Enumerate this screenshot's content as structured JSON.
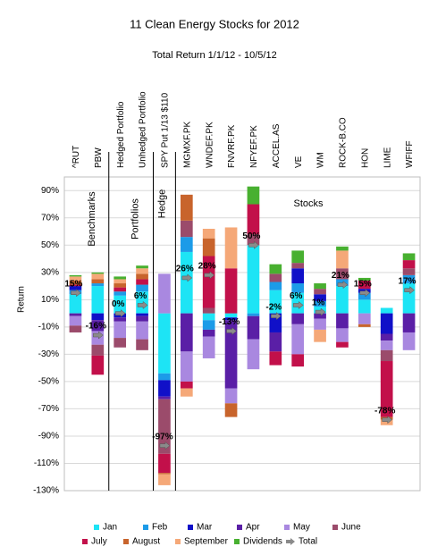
{
  "chart_data": {
    "type": "stacked-bar",
    "title": "11 Clean Energy Stocks for 2012",
    "subtitle": "Total Return 1/1/12 - 10/5/12",
    "y_label": "Return",
    "annotations": [
      "Benchmarks",
      "Portfolios",
      "Hedge",
      "Stocks"
    ],
    "categories": [
      "^RUT",
      "PBW",
      "Hedged Portfolio",
      "Unhedged Portfolio",
      "SPY Put 1/13 $110",
      "MGMXF.PK",
      "WNDEF.PK",
      "FNVRF.PK",
      "NFYEF.PK",
      "ACCEL.AS",
      "VE",
      "WM",
      "ROCK-B.CO",
      "HON",
      "LIME",
      "WFIFF"
    ],
    "series": [
      {
        "name": "Jan",
        "color": "#1de4f5",
        "values": [
          14,
          20,
          13,
          16,
          -44,
          45,
          -5,
          -3,
          50,
          17,
          15,
          5,
          20,
          10,
          4,
          22
        ]
      },
      {
        "name": "Feb",
        "color": "#1c9be8",
        "values": [
          3,
          2,
          3,
          5,
          -5,
          11,
          -7,
          0,
          -2,
          6,
          7,
          4,
          5,
          5,
          0,
          6
        ]
      },
      {
        "name": "Mar",
        "color": "#1010c8",
        "values": [
          3,
          -5,
          -3,
          -2,
          -12,
          0,
          0,
          -2,
          0,
          -14,
          11,
          5,
          0,
          3,
          -15,
          0
        ]
      },
      {
        "name": "Apr",
        "color": "#5a1fa6",
        "values": [
          -2,
          -8,
          -3,
          -4,
          -2,
          -28,
          -5,
          -50,
          -17,
          -14,
          -8,
          -4,
          -11,
          0,
          -5,
          -14
        ]
      },
      {
        "name": "May",
        "color": "#a988e0",
        "values": [
          -7,
          -10,
          -12,
          -13,
          29,
          -22,
          -16,
          -11,
          -22,
          0,
          -22,
          -8,
          -10,
          -8,
          -7,
          -13
        ]
      },
      {
        "name": "June",
        "color": "#9b4b6b",
        "values": [
          -5,
          -8,
          -7,
          -8,
          -40,
          12,
          4,
          0,
          8,
          6,
          4,
          4,
          8,
          0,
          -8,
          5
        ]
      },
      {
        "name": "July",
        "color": "#c2104a",
        "values": [
          1,
          -14,
          3,
          4,
          -14,
          -5,
          38,
          33,
          22,
          -10,
          -9,
          0,
          -4,
          6,
          -41,
          6
        ]
      },
      {
        "name": "August",
        "color": "#c8642c",
        "values": [
          3,
          3,
          3,
          4,
          -1,
          19,
          13,
          -10,
          0,
          0,
          0,
          0,
          0,
          -2,
          -2,
          0
        ]
      },
      {
        "name": "September",
        "color": "#f5a878",
        "values": [
          3,
          4,
          3,
          4,
          -8,
          -6,
          7,
          30,
          0,
          0,
          0,
          -9,
          13,
          0,
          -4,
          0
        ]
      },
      {
        "name": "Dividends",
        "color": "#48b030",
        "values": [
          1,
          1,
          2,
          2,
          0,
          0,
          0,
          0,
          13,
          7,
          9,
          4,
          3,
          2,
          0,
          5
        ]
      }
    ],
    "total": {
      "name": "Total",
      "color": "#8a8a8a",
      "values": [
        15,
        -16,
        0,
        6,
        -97,
        26,
        28,
        -13,
        50,
        -2,
        6,
        1,
        21,
        15,
        -78,
        17
      ],
      "value_labels": [
        "15%",
        "-16%",
        "0%",
        "6%",
        "-97%",
        "26%",
        "28%",
        "-13%",
        "50%",
        "-2%",
        "6%",
        "1%",
        "21%",
        "15%",
        "-78%",
        "17%"
      ]
    },
    "ylim": [
      -130,
      100
    ],
    "yticks": [
      {
        "value": -130,
        "label": "-130%"
      },
      {
        "value": -110,
        "label": "-110%"
      },
      {
        "value": -90,
        "label": "-90%"
      },
      {
        "value": -70,
        "label": "-70%"
      },
      {
        "value": -50,
        "label": "-50%"
      },
      {
        "value": -30,
        "label": "-30%"
      },
      {
        "value": -10,
        "label": "-10%"
      },
      {
        "value": 10,
        "label": "10%"
      },
      {
        "value": 30,
        "label": "30%"
      },
      {
        "value": 50,
        "label": "50%"
      },
      {
        "value": 70,
        "label": "70%"
      },
      {
        "value": 90,
        "label": "90%"
      }
    ],
    "grid": true
  }
}
